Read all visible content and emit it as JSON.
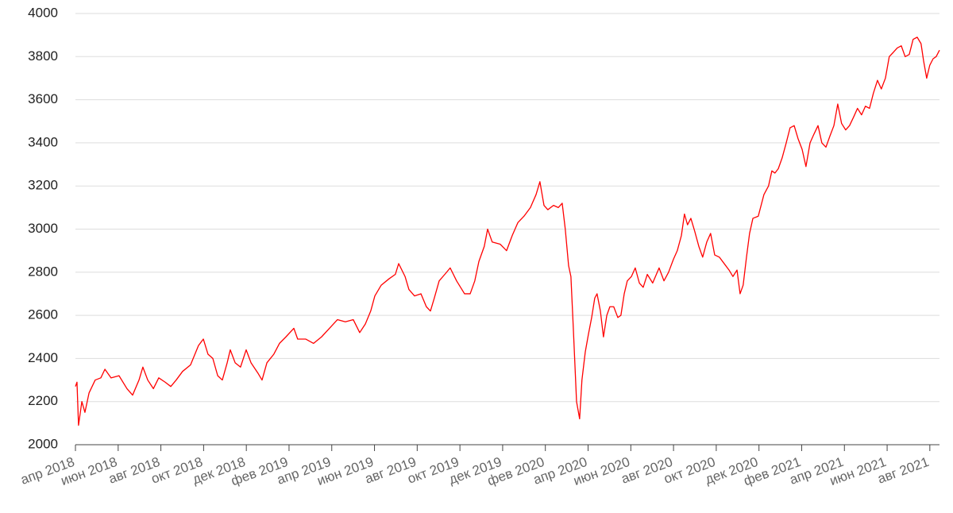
{
  "chart_data": {
    "type": "line",
    "x": [
      2018.25,
      2018.256,
      2018.262,
      2018.275,
      2018.287,
      2018.303,
      2018.327,
      2018.349,
      2018.365,
      2018.389,
      2018.42,
      2018.451,
      2018.473,
      2018.498,
      2018.513,
      2018.532,
      2018.554,
      2018.575,
      2018.6,
      2018.622,
      2018.643,
      2018.668,
      2018.699,
      2018.73,
      2018.749,
      2018.767,
      2018.786,
      2018.805,
      2018.823,
      2018.842,
      2018.854,
      2018.873,
      2018.894,
      2018.916,
      2018.935,
      2018.963,
      2018.978,
      2018.997,
      2019.024,
      2019.046,
      2019.071,
      2019.102,
      2019.117,
      2019.148,
      2019.179,
      2019.21,
      2019.241,
      2019.272,
      2019.303,
      2019.334,
      2019.359,
      2019.381,
      2019.402,
      2019.418,
      2019.443,
      2019.474,
      2019.498,
      2019.511,
      2019.536,
      2019.551,
      2019.573,
      2019.598,
      2019.619,
      2019.635,
      2019.65,
      2019.669,
      2019.691,
      2019.712,
      2019.737,
      2019.768,
      2019.79,
      2019.808,
      2019.824,
      2019.845,
      2019.858,
      2019.876,
      2019.907,
      2019.932,
      2019.954,
      2019.976,
      2020.0,
      2020.025,
      2020.047,
      2020.062,
      2020.078,
      2020.093,
      2020.115,
      2020.134,
      2020.149,
      2020.161,
      2020.174,
      2020.183,
      2020.192,
      2020.205,
      2020.217,
      2020.226,
      2020.239,
      2020.251,
      2020.264,
      2020.276,
      2020.285,
      2020.298,
      2020.31,
      2020.323,
      2020.335,
      2020.35,
      2020.366,
      2020.378,
      2020.391,
      2020.403,
      2020.419,
      2020.434,
      2020.45,
      2020.465,
      2020.481,
      2020.502,
      2020.527,
      2020.546,
      2020.564,
      2020.583,
      2020.598,
      2020.614,
      2020.626,
      2020.638,
      2020.651,
      2020.666,
      2020.682,
      2020.697,
      2020.713,
      2020.728,
      2020.744,
      2020.762,
      2020.781,
      2020.8,
      2020.815,
      2020.831,
      2020.843,
      2020.855,
      2020.868,
      2020.88,
      2020.893,
      2020.914,
      2020.936,
      2020.954,
      2020.967,
      2020.979,
      2020.992,
      2021.007,
      2021.023,
      2021.038,
      2021.054,
      2021.069,
      2021.085,
      2021.1,
      2021.116,
      2021.131,
      2021.147,
      2021.162,
      2021.178,
      2021.193,
      2021.209,
      2021.224,
      2021.239,
      2021.255,
      2021.27,
      2021.286,
      2021.301,
      2021.317,
      2021.332,
      2021.348,
      2021.363,
      2021.379,
      2021.394,
      2021.41,
      2021.425,
      2021.441,
      2021.456,
      2021.472,
      2021.487,
      2021.503,
      2021.518,
      2021.534,
      2021.549,
      2021.559,
      2021.571,
      2021.583,
      2021.596,
      2021.608,
      2021.621
    ],
    "series": [
      {
        "color": "#ff0000",
        "values": [
          2270,
          2290,
          2090,
          2200,
          2150,
          2240,
          2300,
          2310,
          2350,
          2310,
          2320,
          2260,
          2230,
          2300,
          2360,
          2300,
          2260,
          2310,
          2290,
          2270,
          2300,
          2340,
          2370,
          2460,
          2490,
          2420,
          2400,
          2320,
          2300,
          2380,
          2440,
          2380,
          2360,
          2440,
          2380,
          2330,
          2300,
          2380,
          2420,
          2470,
          2500,
          2540,
          2490,
          2490,
          2470,
          2500,
          2540,
          2580,
          2570,
          2580,
          2520,
          2560,
          2620,
          2690,
          2740,
          2770,
          2790,
          2840,
          2780,
          2720,
          2690,
          2700,
          2640,
          2620,
          2680,
          2760,
          2790,
          2820,
          2760,
          2700,
          2700,
          2760,
          2850,
          2920,
          3000,
          2940,
          2930,
          2900,
          2970,
          3030,
          3060,
          3100,
          3160,
          3220,
          3110,
          3090,
          3110,
          3100,
          3120,
          3000,
          2830,
          2780,
          2550,
          2200,
          2120,
          2300,
          2430,
          2510,
          2590,
          2680,
          2700,
          2620,
          2500,
          2600,
          2640,
          2640,
          2590,
          2600,
          2700,
          2760,
          2780,
          2820,
          2750,
          2730,
          2790,
          2750,
          2820,
          2760,
          2800,
          2860,
          2900,
          2970,
          3070,
          3020,
          3050,
          2990,
          2920,
          2870,
          2940,
          2980,
          2880,
          2870,
          2840,
          2810,
          2780,
          2810,
          2700,
          2740,
          2870,
          2980,
          3050,
          3060,
          3160,
          3200,
          3270,
          3260,
          3280,
          3330,
          3400,
          3470,
          3480,
          3420,
          3370,
          3290,
          3400,
          3440,
          3480,
          3400,
          3380,
          3430,
          3480,
          3580,
          3490,
          3460,
          3480,
          3520,
          3560,
          3530,
          3570,
          3560,
          3630,
          3690,
          3650,
          3700,
          3800,
          3820,
          3840,
          3850,
          3800,
          3810,
          3880,
          3890,
          3860,
          3780,
          3700,
          3760,
          3790,
          3800,
          3830
        ]
      }
    ],
    "xlim": [
      2018.25,
      2021.621
    ],
    "xticks": [
      {
        "value": 2018.25,
        "label": "апр 2018"
      },
      {
        "value": 2018.4167,
        "label": "июн 2018"
      },
      {
        "value": 2018.5833,
        "label": "авг 2018"
      },
      {
        "value": 2018.75,
        "label": "окт 2018"
      },
      {
        "value": 2018.9167,
        "label": "дек 2018"
      },
      {
        "value": 2019.0833,
        "label": "фев 2019"
      },
      {
        "value": 2019.25,
        "label": "апр 2019"
      },
      {
        "value": 2019.4167,
        "label": "июн 2019"
      },
      {
        "value": 2019.5833,
        "label": "авг 2019"
      },
      {
        "value": 2019.75,
        "label": "окт 2019"
      },
      {
        "value": 2019.9167,
        "label": "дек 2019"
      },
      {
        "value": 2020.0833,
        "label": "фев 2020"
      },
      {
        "value": 2020.25,
        "label": "апр 2020"
      },
      {
        "value": 2020.4167,
        "label": "июн 2020"
      },
      {
        "value": 2020.5833,
        "label": "авг 2020"
      },
      {
        "value": 2020.75,
        "label": "окт 2020"
      },
      {
        "value": 2020.9167,
        "label": "дек 2020"
      },
      {
        "value": 2021.0833,
        "label": "фев 2021"
      },
      {
        "value": 2021.25,
        "label": "апр 2021"
      },
      {
        "value": 2021.4167,
        "label": "июн 2021"
      },
      {
        "value": 2021.5833,
        "label": "авг 2021"
      }
    ],
    "ylim": [
      2000,
      4000
    ],
    "yticks": [
      2000,
      2200,
      2400,
      2600,
      2800,
      3000,
      3200,
      3400,
      3600,
      3800,
      4000
    ],
    "grid": true
  }
}
